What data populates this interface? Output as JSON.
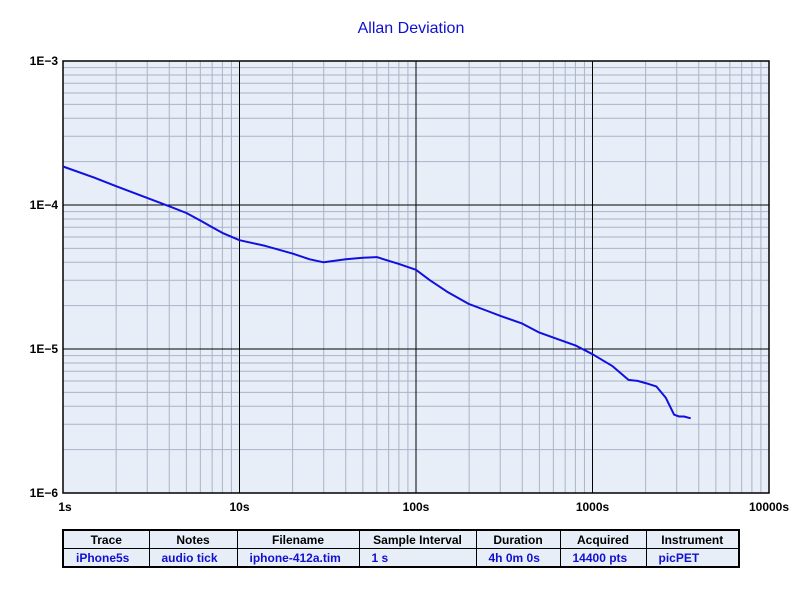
{
  "chart_data": {
    "type": "line",
    "title": "Allan Deviation",
    "xlabel": "",
    "ylabel": "",
    "x_scale": "log",
    "y_scale": "log",
    "xlim": [
      1,
      10000
    ],
    "ylim": [
      1e-06,
      0.001
    ],
    "grid": true,
    "x_ticks": [
      {
        "value": 1,
        "label": "1s"
      },
      {
        "value": 10,
        "label": "10s"
      },
      {
        "value": 100,
        "label": "100s"
      },
      {
        "value": 1000,
        "label": "1000s"
      },
      {
        "value": 10000,
        "label": "10000s"
      }
    ],
    "y_ticks": [
      {
        "value": 0.001,
        "label": "1E−3"
      },
      {
        "value": 0.0001,
        "label": "1E−4"
      },
      {
        "value": 1e-05,
        "label": "1E−5"
      },
      {
        "value": 1e-06,
        "label": "1E−6"
      }
    ],
    "series": [
      {
        "color": "#1010e0",
        "x": [
          1,
          1.5,
          2,
          3,
          4,
          5,
          6,
          7,
          8,
          10,
          14,
          20,
          25,
          30,
          40,
          50,
          60,
          70,
          80,
          100,
          120,
          150,
          200,
          250,
          300,
          400,
          500,
          600,
          800,
          1000,
          1300,
          1600,
          1800,
          2000,
          2300,
          2600,
          2900,
          3100,
          3300,
          3600
        ],
        "y": [
          0.000185,
          0.000155,
          0.000135,
          0.000112,
          9.8e-05,
          8.8e-05,
          7.8e-05,
          7e-05,
          6.4e-05,
          5.7e-05,
          5.2e-05,
          4.6e-05,
          4.2e-05,
          4e-05,
          4.2e-05,
          4.3e-05,
          4.35e-05,
          4.1e-05,
          3.9e-05,
          3.55e-05,
          3e-05,
          2.5e-05,
          2.05e-05,
          1.85e-05,
          1.7e-05,
          1.5e-05,
          1.3e-05,
          1.2e-05,
          1.06e-05,
          9.2e-06,
          7.6e-06,
          6.1e-06,
          6e-06,
          5.8e-06,
          5.5e-06,
          4.6e-06,
          3.5e-06,
          3.4e-06,
          3.4e-06,
          3.3e-06
        ]
      }
    ]
  },
  "info_table": {
    "headers": [
      "Trace",
      "Notes",
      "Filename",
      "Sample Interval",
      "Duration",
      "Acquired",
      "Instrument"
    ],
    "row": [
      "iPhone5s",
      "audio tick",
      "iphone-412a.tim",
      "1 s",
      "4h 0m 0s",
      "14400 pts",
      "picPET"
    ]
  }
}
